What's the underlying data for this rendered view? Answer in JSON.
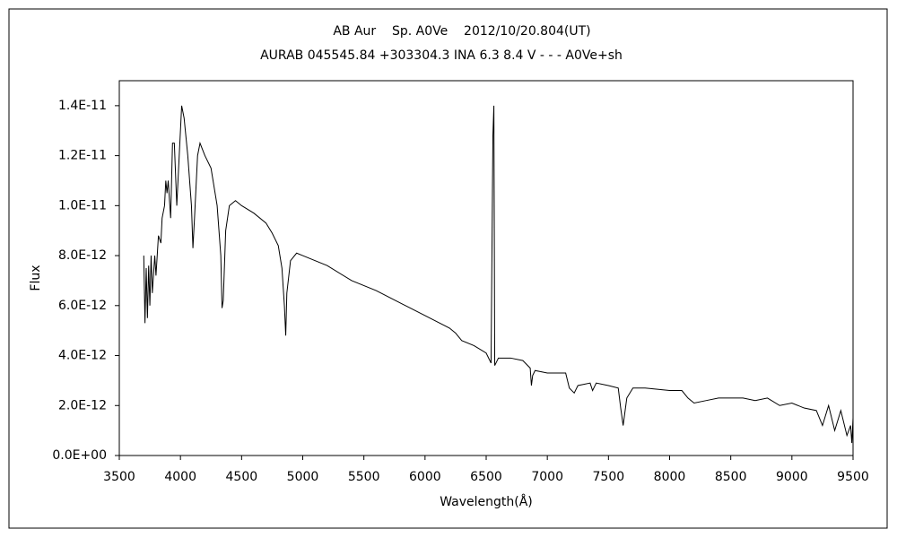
{
  "chart_data": {
    "type": "line",
    "title": "AB Aur    Sp. A0Ve    2012/10/20.804(UT)",
    "subtitle": "AURAB 045545.84 +303304.3 INA 6.3 8.4 V - - - A0Ve+sh",
    "x_label": "Wavelength(Å)",
    "y_label": "Flux",
    "color": "#000000",
    "xlim": [
      3500,
      9500
    ],
    "xticks": [
      3500,
      4000,
      4500,
      5000,
      5500,
      6000,
      6500,
      7000,
      7500,
      8000,
      8500,
      9000,
      9500
    ],
    "ylim": [
      0,
      1.5e-11
    ],
    "yticks": [
      {
        "value": 0,
        "label": "0.0E+00"
      },
      {
        "value": 2e-12,
        "label": "2.0E-12"
      },
      {
        "value": 4e-12,
        "label": "4.0E-12"
      },
      {
        "value": 6e-12,
        "label": "6.0E-12"
      },
      {
        "value": 8e-12,
        "label": "8.0E-12"
      },
      {
        "value": 1e-11,
        "label": "1.0E-11"
      },
      {
        "value": 1.2e-11,
        "label": "1.2E-11"
      },
      {
        "value": 1.4e-11,
        "label": "1.4E-11"
      }
    ],
    "x": [
      3700,
      3710,
      3720,
      3730,
      3740,
      3750,
      3760,
      3770,
      3790,
      3800,
      3820,
      3840,
      3850,
      3870,
      3880,
      3890,
      3900,
      3920,
      3935,
      3950,
      3970,
      3990,
      4010,
      4030,
      4060,
      4090,
      4102,
      4115,
      4140,
      4160,
      4200,
      4250,
      4300,
      4330,
      4340,
      4350,
      4370,
      4400,
      4450,
      4500,
      4600,
      4700,
      4750,
      4800,
      4830,
      4850,
      4861,
      4870,
      4900,
      4950,
      5000,
      5200,
      5400,
      5600,
      5800,
      6000,
      6200,
      6250,
      6300,
      6400,
      6500,
      6540,
      6555,
      6563,
      6570,
      6600,
      6700,
      6800,
      6860,
      6870,
      6880,
      6900,
      7000,
      7150,
      7180,
      7220,
      7250,
      7350,
      7370,
      7400,
      7500,
      7580,
      7600,
      7620,
      7650,
      7700,
      7800,
      8000,
      8100,
      8150,
      8200,
      8300,
      8400,
      8500,
      8600,
      8700,
      8800,
      8900,
      9000,
      9100,
      9200,
      9250,
      9300,
      9350,
      9400,
      9450,
      9480,
      9490,
      9500
    ],
    "values": [
      8e-12,
      5.3e-12,
      7.5e-12,
      5.5e-12,
      7.6e-12,
      6e-12,
      8e-12,
      6.5e-12,
      8e-12,
      7.2e-12,
      8.8e-12,
      8.5e-12,
      9.5e-12,
      1e-11,
      1.1e-11,
      1.05e-11,
      1.1e-11,
      9.5e-12,
      1.25e-11,
      1.25e-11,
      1e-11,
      1.2e-11,
      1.4e-11,
      1.35e-11,
      1.2e-11,
      1e-11,
      8.3e-12,
      9.5e-12,
      1.2e-11,
      1.25e-11,
      1.2e-11,
      1.15e-11,
      1e-11,
      8e-12,
      5.9e-12,
      6.2e-12,
      9e-12,
      1e-11,
      1.02e-11,
      1e-11,
      9.7e-12,
      9.3e-12,
      8.9e-12,
      8.4e-12,
      7.5e-12,
      6e-12,
      4.8e-12,
      6.5e-12,
      7.8e-12,
      8.1e-12,
      8e-12,
      7.6e-12,
      7e-12,
      6.6e-12,
      6.1e-12,
      5.6e-12,
      5.1e-12,
      4.9e-12,
      4.6e-12,
      4.4e-12,
      4.1e-12,
      3.7e-12,
      1.28e-11,
      1.4e-11,
      3.6e-12,
      3.9e-12,
      3.9e-12,
      3.8e-12,
      3.5e-12,
      2.8e-12,
      3.2e-12,
      3.4e-12,
      3.3e-12,
      3.3e-12,
      2.7e-12,
      2.5e-12,
      2.8e-12,
      2.9e-12,
      2.6e-12,
      2.9e-12,
      2.8e-12,
      2.7e-12,
      1.9e-12,
      1.2e-12,
      2.3e-12,
      2.7e-12,
      2.7e-12,
      2.6e-12,
      2.6e-12,
      2.3e-12,
      2.1e-12,
      2.2e-12,
      2.3e-12,
      2.3e-12,
      2.3e-12,
      2.2e-12,
      2.3e-12,
      2e-12,
      2.1e-12,
      1.9e-12,
      1.8e-12,
      1.2e-12,
      2e-12,
      1e-12,
      1.8e-12,
      8e-13,
      1.2e-12,
      5e-13,
      1.5e-12
    ]
  }
}
